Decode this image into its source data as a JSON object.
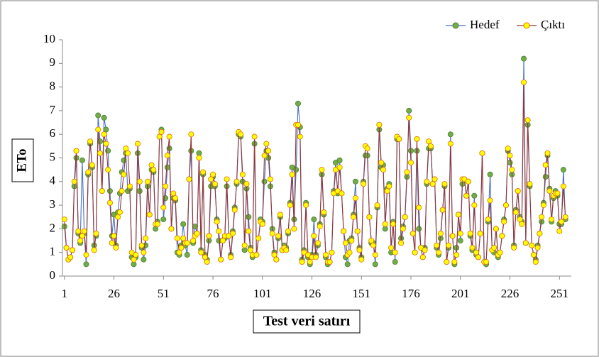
{
  "chart_data": {
    "type": "line",
    "x_label": "Test veri satırı",
    "y_label": "ETo",
    "x": [
      1,
      2,
      3,
      4,
      5,
      6,
      7,
      8,
      9,
      10,
      11,
      12,
      13,
      14,
      15,
      16,
      17,
      18,
      19,
      20,
      21,
      22,
      23,
      24,
      25,
      26,
      27,
      28,
      29,
      30,
      31,
      32,
      33,
      34,
      35,
      36,
      37,
      38,
      39,
      40,
      41,
      42,
      43,
      44,
      45,
      46,
      47,
      48,
      49,
      50,
      51,
      52,
      53,
      54,
      55,
      56,
      57,
      58,
      59,
      60,
      61,
      62,
      63,
      64,
      65,
      66,
      67,
      68,
      69,
      70,
      71,
      72,
      73,
      74,
      75,
      76,
      77,
      78,
      79,
      80,
      81,
      82,
      83,
      84,
      85,
      86,
      87,
      88,
      89,
      90,
      91,
      92,
      93,
      94,
      95,
      96,
      97,
      98,
      99,
      100,
      101,
      102,
      103,
      104,
      105,
      106,
      107,
      108,
      109,
      110,
      111,
      112,
      113,
      114,
      115,
      116,
      117,
      118,
      119,
      120,
      121,
      122,
      123,
      124,
      125,
      126,
      127,
      128,
      129,
      130,
      131,
      132,
      133,
      134,
      135,
      136,
      137,
      138,
      139,
      140,
      141,
      142,
      143,
      144,
      145,
      146,
      147,
      148,
      149,
      150,
      151,
      152,
      153,
      154,
      155,
      156,
      157,
      158,
      159,
      160,
      161,
      162,
      163,
      164,
      165,
      166,
      167,
      168,
      169,
      170,
      171,
      172,
      173,
      174,
      175,
      176,
      177,
      178,
      179,
      180,
      181,
      182,
      183,
      184,
      185,
      186,
      187,
      188,
      189,
      190,
      191,
      192,
      193,
      194,
      195,
      196,
      197,
      198,
      199,
      200,
      201,
      202,
      203,
      204,
      205,
      206,
      207,
      208,
      209,
      210,
      211,
      212,
      213,
      214,
      215,
      216,
      217,
      218,
      219,
      220,
      221,
      222,
      223,
      224,
      225,
      226,
      227,
      228,
      229,
      230,
      231,
      232,
      233,
      234,
      235,
      236,
      237,
      238,
      239,
      240,
      241,
      242,
      243,
      244,
      245,
      246,
      247,
      248,
      249,
      250,
      251,
      252,
      253,
      254
    ],
    "series": [
      {
        "name": "Hedef",
        "color": "#4472c4",
        "marker_color": "#70ad47",
        "marker_edge": "#4e7c35",
        "values": [
          2.1,
          1.2,
          0.7,
          0.8,
          1.1,
          3.8,
          5.0,
          1.8,
          1.4,
          4.9,
          1.8,
          0.5,
          4.3,
          5.6,
          4.6,
          1.3,
          1.7,
          6.8,
          5.7,
          3.6,
          6.7,
          6.2,
          5.3,
          3.6,
          1.7,
          2.6,
          1.3,
          2.7,
          3.5,
          4.4,
          4.9,
          5.2,
          3.6,
          3.7,
          0.8,
          0.5,
          0.8,
          5.2,
          3.6,
          1.2,
          0.7,
          1.3,
          3.8,
          2.6,
          4.5,
          4.4,
          2.0,
          2.3,
          5.9,
          6.2,
          2.4,
          3.3,
          4.6,
          5.4,
          2.0,
          3.3,
          3.2,
          1.0,
          0.9,
          1.3,
          2.2,
          1.3,
          0.9,
          4.1,
          5.3,
          1.4,
          2.1,
          1.8,
          5.2,
          1.1,
          4.3,
          0.9,
          0.7,
          1.5,
          3.8,
          4.2,
          3.8,
          2.4,
          1.5,
          0.7,
          1.5,
          1.6,
          3.8,
          1.7,
          0.9,
          1.9,
          2.9,
          3.9,
          6.0,
          5.9,
          4.0,
          1.1,
          3.7,
          2.5,
          1.2,
          0.8,
          5.6,
          0.9,
          1.6,
          2.4,
          2.3,
          4.0,
          5.3,
          5.0,
          3.8,
          2.0,
          1.0,
          0.7,
          1.6,
          2.5,
          1.1,
          1.3,
          1.2,
          1.8,
          3.1,
          4.6,
          2.4,
          4.5,
          7.3,
          6.3,
          0.7,
          1.1,
          3.1,
          0.8,
          0.5,
          0.9,
          2.4,
          0.9,
          1.3,
          2.2,
          4.3,
          2.6,
          0.8,
          0.5,
          0.6,
          1.0,
          3.6,
          4.8,
          3.5,
          4.9,
          3.5,
          1.9,
          0.8,
          0.5,
          1.5,
          1.6,
          2.6,
          4.0,
          1.9,
          1.2,
          0.8,
          4.0,
          5.1,
          5.1,
          2.5,
          1.4,
          1.4,
          0.5,
          2.9,
          6.2,
          4.6,
          4.7,
          2.0,
          3.7,
          3.9,
          1.0,
          2.3,
          0.6,
          5.8,
          5.8,
          1.6,
          2.1,
          2.5,
          4.2,
          7.0,
          5.3,
          1.8,
          1.0,
          5.3,
          2.0,
          1.2,
          0.8,
          1.2,
          3.9,
          5.4,
          5.4,
          3.9,
          4.1,
          1.2,
          0.9,
          1.6,
          2.8,
          3.8,
          0.6,
          1.2,
          6.0,
          1.7,
          0.5,
          1.2,
          2.6,
          1.5,
          3.9,
          4.1,
          3.4,
          4.0,
          1.7,
          1.1,
          3.4,
          0.9,
          0.8,
          1.8,
          5.2,
          0.6,
          0.5,
          2.3,
          4.3,
          1.1,
          1.0,
          2.0,
          0.8,
          1.0,
          1.7,
          2.4,
          3.0,
          5.3,
          4.8,
          4.3,
          1.3,
          2.8,
          3.6,
          2.5,
          2.3,
          9.2,
          1.4,
          6.4,
          3.8,
          1.3,
          0.9,
          0.7,
          1.3,
          1.8,
          2.3,
          3.1,
          4.2,
          5.1,
          3.7,
          2.3,
          3.3,
          3.6,
          3.4,
          2.2,
          2.2,
          4.5,
          2.4
        ]
      },
      {
        "name": "Çıktı",
        "color": "#943634",
        "marker_color": "#ffff00",
        "marker_edge": "#e36c09",
        "values": [
          2.4,
          1.2,
          0.7,
          0.8,
          1.1,
          4.0,
          5.3,
          1.9,
          1.5,
          1.7,
          1.9,
          0.9,
          4.4,
          5.7,
          4.7,
          1.1,
          1.8,
          6.2,
          5.2,
          3.6,
          6.0,
          5.6,
          4.5,
          3.1,
          1.4,
          1.7,
          1.2,
          2.5,
          2.7,
          3.6,
          4.3,
          5.4,
          5.2,
          3.8,
          1.0,
          0.7,
          0.9,
          5.6,
          4.0,
          1.3,
          1.0,
          1.6,
          4.0,
          2.6,
          4.7,
          4.5,
          2.2,
          2.2,
          5.9,
          6.1,
          2.9,
          3.8,
          5.1,
          5.9,
          2.0,
          3.5,
          3.3,
          1.6,
          1.0,
          1.2,
          1.6,
          1.4,
          1.4,
          4.1,
          6.0,
          1.5,
          1.7,
          1.8,
          5.0,
          1.0,
          4.4,
          0.8,
          0.6,
          1.7,
          4.1,
          4.3,
          3.9,
          2.3,
          1.9,
          0.7,
          1.5,
          1.7,
          4.1,
          1.7,
          0.8,
          1.8,
          2.8,
          4.0,
          6.1,
          6.0,
          4.3,
          1.3,
          3.9,
          1.9,
          1.1,
          0.9,
          5.9,
          0.9,
          1.6,
          2.3,
          2.2,
          5.1,
          5.6,
          5.3,
          4.1,
          1.8,
          0.9,
          0.7,
          1.7,
          2.6,
          1.1,
          1.2,
          1.1,
          1.9,
          3.0,
          4.3,
          2.0,
          6.4,
          6.4,
          5.9,
          0.6,
          1.0,
          3.0,
          0.9,
          0.6,
          0.8,
          1.7,
          0.8,
          1.4,
          2.1,
          4.5,
          2.7,
          0.9,
          0.6,
          0.6,
          1.0,
          3.5,
          4.5,
          3.6,
          4.6,
          3.5,
          1.9,
          1.4,
          0.9,
          1.0,
          1.5,
          2.5,
          3.3,
          1.9,
          1.1,
          0.7,
          3.9,
          5.5,
          5.4,
          2.5,
          1.5,
          1.3,
          0.9,
          3.0,
          6.4,
          4.8,
          4.5,
          2.2,
          3.6,
          3.8,
          1.2,
          2.2,
          1.0,
          5.9,
          5.8,
          1.4,
          2.0,
          2.5,
          4.4,
          6.7,
          4.8,
          1.8,
          1.0,
          5.8,
          2.9,
          1.2,
          0.8,
          1.1,
          4.0,
          5.7,
          5.5,
          3.9,
          4.1,
          1.3,
          1.0,
          1.8,
          2.8,
          3.9,
          0.6,
          1.3,
          5.6,
          1.7,
          0.6,
          0.9,
          2.6,
          1.8,
          4.1,
          4.1,
          3.4,
          4.0,
          1.8,
          1.2,
          3.0,
          1.0,
          0.8,
          1.8,
          5.2,
          0.6,
          0.6,
          2.4,
          3.2,
          1.1,
          1.2,
          2.0,
          0.9,
          1.0,
          1.7,
          2.3,
          3.0,
          5.4,
          5.1,
          4.5,
          1.2,
          2.7,
          3.6,
          2.4,
          2.2,
          8.2,
          1.4,
          6.6,
          3.9,
          1.3,
          0.9,
          0.6,
          1.2,
          1.8,
          2.5,
          3.0,
          4.7,
          5.2,
          3.6,
          2.4,
          3.4,
          3.5,
          3.5,
          1.9,
          2.3,
          3.8,
          2.5
        ]
      }
    ],
    "xlim": [
      0,
      257
    ],
    "xticks": [
      1,
      26,
      51,
      76,
      101,
      126,
      151,
      176,
      201,
      226,
      251
    ],
    "ylim": [
      0,
      10
    ],
    "yticks": [
      0,
      1,
      2,
      3,
      4,
      5,
      6,
      7,
      8,
      9,
      10
    ],
    "legend": "top-right"
  }
}
